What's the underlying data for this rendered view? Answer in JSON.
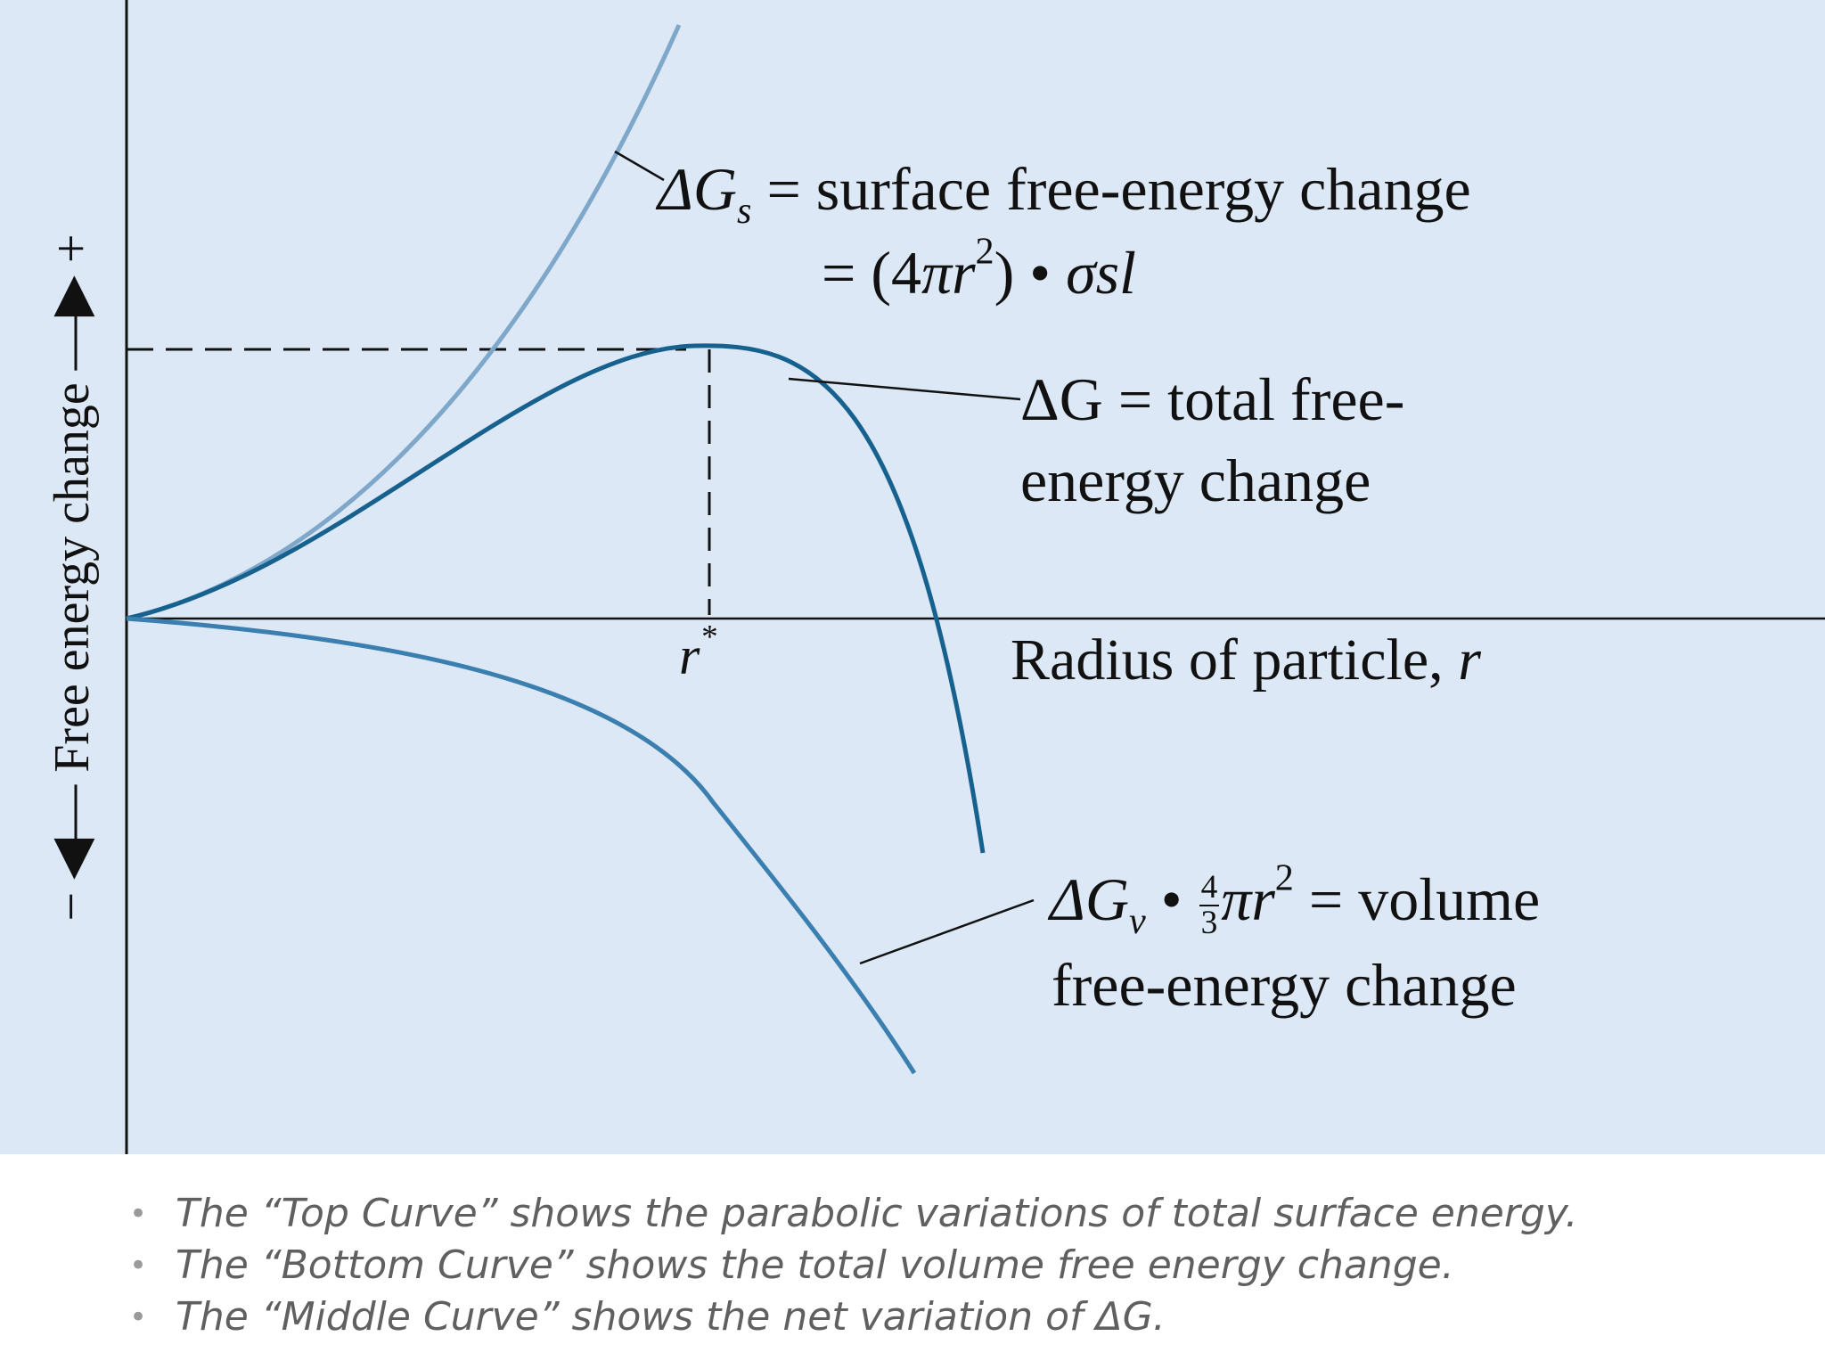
{
  "diagram": {
    "y_axis": {
      "label": "Free energy change",
      "negative_sign": "−",
      "positive_sign": "+"
    },
    "x_axis": {
      "label_text": "Radius of particle, ",
      "label_var": "r"
    },
    "critical_radius": {
      "var": "r",
      "sup": "*"
    },
    "surface_curve": {
      "delta": "ΔG",
      "sub": "s",
      "line1_text": " = surface free-energy change",
      "line2_eq": "= (4",
      "line2_pi_r": "πr",
      "line2_sup": "2",
      "line2_close": ") • ",
      "line2_sigma": "σsl"
    },
    "total_curve": {
      "line1": "ΔG = total free-",
      "line2": "energy change"
    },
    "volume_curve": {
      "delta": "ΔG",
      "sub": "v",
      "dot": " • ",
      "frac_num": "4",
      "frac_den": "3",
      "pi_r": "πr",
      "sup": "2",
      "line1_rest": " = volume",
      "line2": "free-energy change"
    },
    "colors": {
      "background": "#dce8f5",
      "surface_curve": "#7ea7c9",
      "total_curve": "#17618f",
      "volume_curve": "#3a7fb0",
      "axis": "#111111"
    }
  },
  "bullets": [
    {
      "dot": "•",
      "text": "The “Top Curve” shows the parabolic variations of total surface energy."
    },
    {
      "dot": "•",
      "text": "The “Bottom Curve” shows the total volume free energy change."
    },
    {
      "dot": "•",
      "text": "The “Middle Curve” shows the net variation of ΔG."
    }
  ]
}
